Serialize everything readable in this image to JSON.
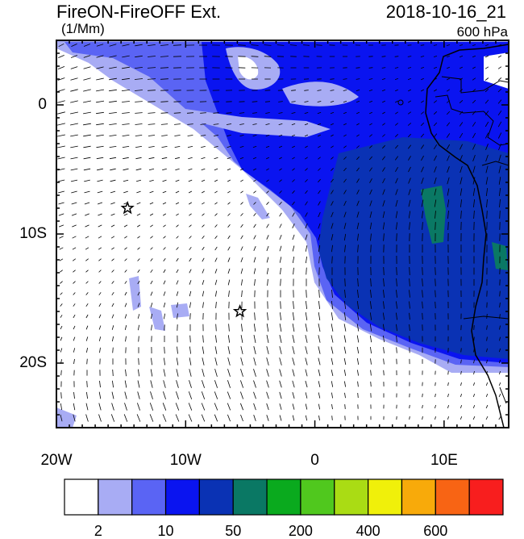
{
  "header": {
    "title": "FireON-FireOFF Ext.",
    "datetime": "2018-10-16_21",
    "units": "(1/Mm)",
    "level": "600 hPa"
  },
  "axes": {
    "y_ticks": [
      {
        "lat": 0,
        "label": "0"
      },
      {
        "lat": -10,
        "label": "10S"
      },
      {
        "lat": -20,
        "label": "20S"
      }
    ],
    "x_ticks": [
      {
        "lon": -20,
        "label": "20W"
      },
      {
        "lon": -10,
        "label": "10W"
      },
      {
        "lon": 0,
        "label": "0"
      },
      {
        "lon": 10,
        "label": "10E"
      }
    ],
    "lon_range": [
      -20,
      15
    ],
    "lat_range": [
      -25,
      5
    ]
  },
  "colorbar": {
    "colors": [
      "#ffffff",
      "#a8acf4",
      "#5a64f4",
      "#0a14f0",
      "#0a32b4",
      "#0a7864",
      "#0aaa1e",
      "#50c81e",
      "#aadc14",
      "#f0f00a",
      "#f8aa0a",
      "#f86414",
      "#f81e1e"
    ],
    "labels": [
      {
        "boundary": 1,
        "text": "2"
      },
      {
        "boundary": 3,
        "text": "10"
      },
      {
        "boundary": 5,
        "text": "50"
      },
      {
        "boundary": 7,
        "text": "200"
      },
      {
        "boundary": 9,
        "text": "400"
      },
      {
        "boundary": 11,
        "text": "600"
      }
    ]
  },
  "markers": [
    {
      "type": "star",
      "lon": -14.5,
      "lat": -8.0
    },
    {
      "type": "star",
      "lon": -5.8,
      "lat": -16.0
    }
  ]
}
